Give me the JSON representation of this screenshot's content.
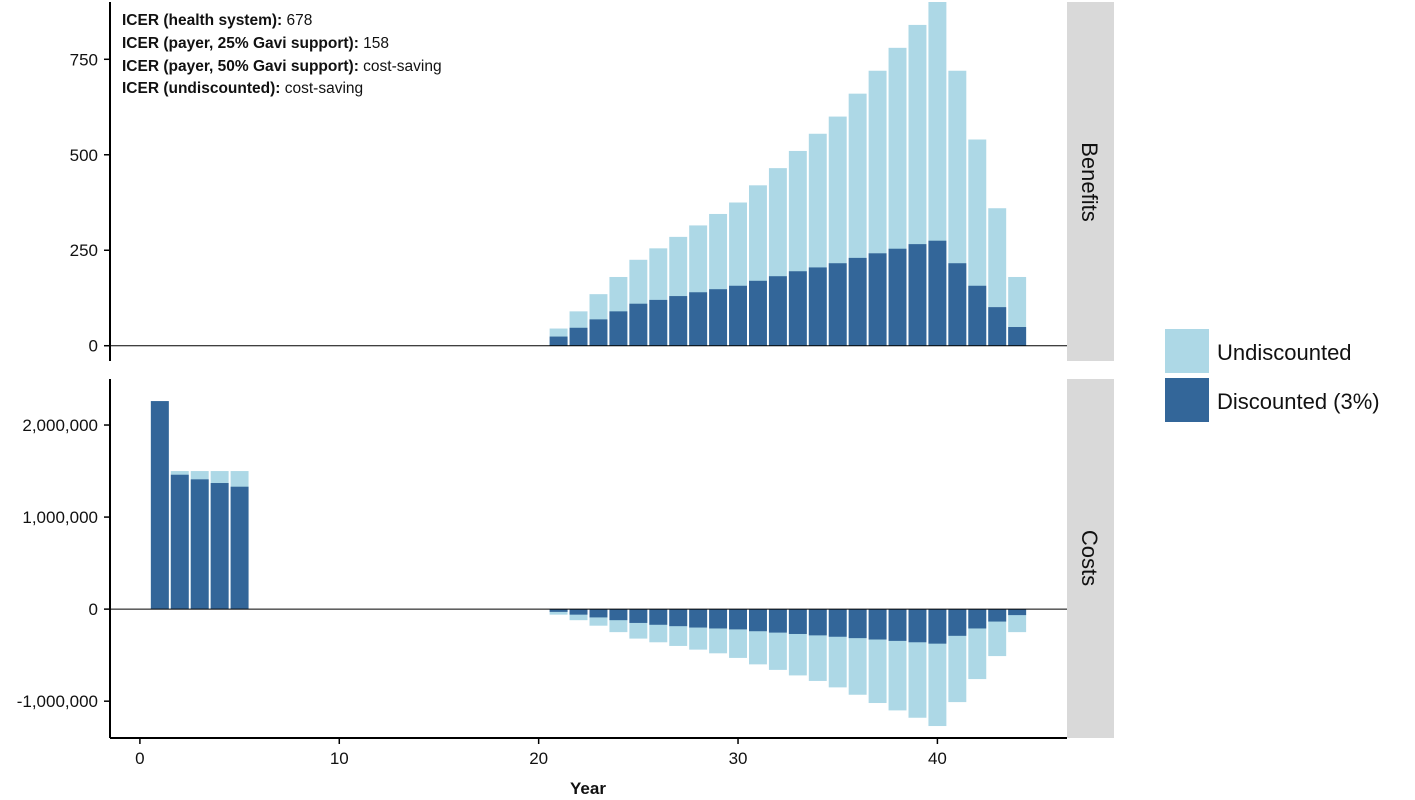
{
  "colors": {
    "undiscounted": "#add8e6",
    "discounted": "#336699",
    "strip_bg": "#d9d9d9"
  },
  "annotations": [
    {
      "key": "ICER (health system):",
      "value": " 678"
    },
    {
      "key": "ICER (payer, 25% Gavi support):",
      "value": " 158"
    },
    {
      "key": "ICER (payer, 50% Gavi support):",
      "value": " cost-saving"
    },
    {
      "key": "ICER (undiscounted):",
      "value": " cost-saving"
    }
  ],
  "chart_data": {
    "type": "bar",
    "xlabel": "Year",
    "x_ticks": [
      "0",
      "10",
      "20",
      "30",
      "40"
    ],
    "xlim": [
      -1.5,
      46.5
    ],
    "legend": {
      "placement": "right",
      "entries": [
        "Undiscounted",
        "Discounted (3%)"
      ]
    },
    "panels": [
      {
        "name": "Benefits",
        "ylim": [
          -40,
          900
        ],
        "y_ticks": [
          {
            "v": 0,
            "label": "0"
          },
          {
            "v": 250,
            "label": "250"
          },
          {
            "v": 500,
            "label": "500"
          },
          {
            "v": 750,
            "label": "750"
          }
        ],
        "series": [
          {
            "name": "Undiscounted",
            "x": [
              21,
              22,
              23,
              24,
              25,
              26,
              27,
              28,
              29,
              30,
              31,
              32,
              33,
              34,
              35,
              36,
              37,
              38,
              39,
              40,
              41,
              42,
              43,
              44
            ],
            "values": [
              45,
              90,
              135,
              180,
              225,
              255,
              285,
              315,
              345,
              375,
              420,
              465,
              510,
              555,
              600,
              660,
              720,
              780,
              840,
              900,
              720,
              540,
              360,
              180
            ]
          },
          {
            "name": "Discounted (3%)",
            "x": [
              21,
              22,
              23,
              24,
              25,
              26,
              27,
              28,
              29,
              30,
              31,
              32,
              33,
              34,
              35,
              36,
              37,
              38,
              39,
              40,
              41,
              42,
              43,
              44
            ],
            "values": [
              24,
              47,
              69,
              90,
              110,
              120,
              130,
              140,
              148,
              157,
              170,
              182,
              195,
              205,
              216,
              230,
              242,
              254,
              266,
              275,
              216,
              157,
              101,
              49
            ]
          }
        ]
      },
      {
        "name": "Costs",
        "ylim": [
          -1400000,
          2500000
        ],
        "y_ticks": [
          {
            "v": -1000000,
            "label": "-1,000,000"
          },
          {
            "v": 0,
            "label": "0"
          },
          {
            "v": 1000000,
            "label": "1,000,000"
          },
          {
            "v": 2000000,
            "label": "2,000,000"
          }
        ],
        "series": [
          {
            "name": "Undiscounted",
            "x": [
              1,
              2,
              3,
              4,
              5,
              21,
              22,
              23,
              24,
              25,
              26,
              27,
              28,
              29,
              30,
              31,
              32,
              33,
              34,
              35,
              36,
              37,
              38,
              39,
              40,
              41,
              42,
              43,
              44
            ],
            "values": [
              2260000,
              1500000,
              1500000,
              1500000,
              1500000,
              -60000,
              -120000,
              -180000,
              -250000,
              -320000,
              -360000,
              -400000,
              -440000,
              -480000,
              -530000,
              -600000,
              -660000,
              -720000,
              -780000,
              -850000,
              -930000,
              -1020000,
              -1100000,
              -1180000,
              -1270000,
              -1010000,
              -760000,
              -510000,
              -250000
            ]
          },
          {
            "name": "Discounted (3%)",
            "x": [
              1,
              2,
              3,
              4,
              5,
              21,
              22,
              23,
              24,
              25,
              26,
              27,
              28,
              29,
              30,
              31,
              32,
              33,
              34,
              35,
              36,
              37,
              38,
              39,
              40,
              41,
              42,
              43,
              44
            ],
            "values": [
              2260000,
              1460000,
              1410000,
              1370000,
              1330000,
              -30000,
              -60000,
              -90000,
              -120000,
              -150000,
              -170000,
              -185000,
              -200000,
              -210000,
              -220000,
              -240000,
              -255000,
              -270000,
              -285000,
              -300000,
              -315000,
              -330000,
              -345000,
              -360000,
              -375000,
              -290000,
              -210000,
              -135000,
              -65000
            ]
          }
        ]
      }
    ]
  }
}
